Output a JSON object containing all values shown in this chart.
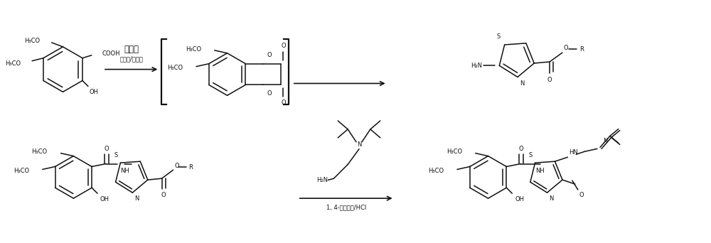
{
  "bg_color": "#ffffff",
  "line_color": "#111111",
  "figsize": [
    10.0,
    3.42
  ],
  "dpi": 100,
  "lw": 1.1,
  "reaction1_line1": "有机碱",
  "reaction1_line2": "三光气/双光气",
  "reaction2_label": "1, 4-二氧六环/HCl"
}
